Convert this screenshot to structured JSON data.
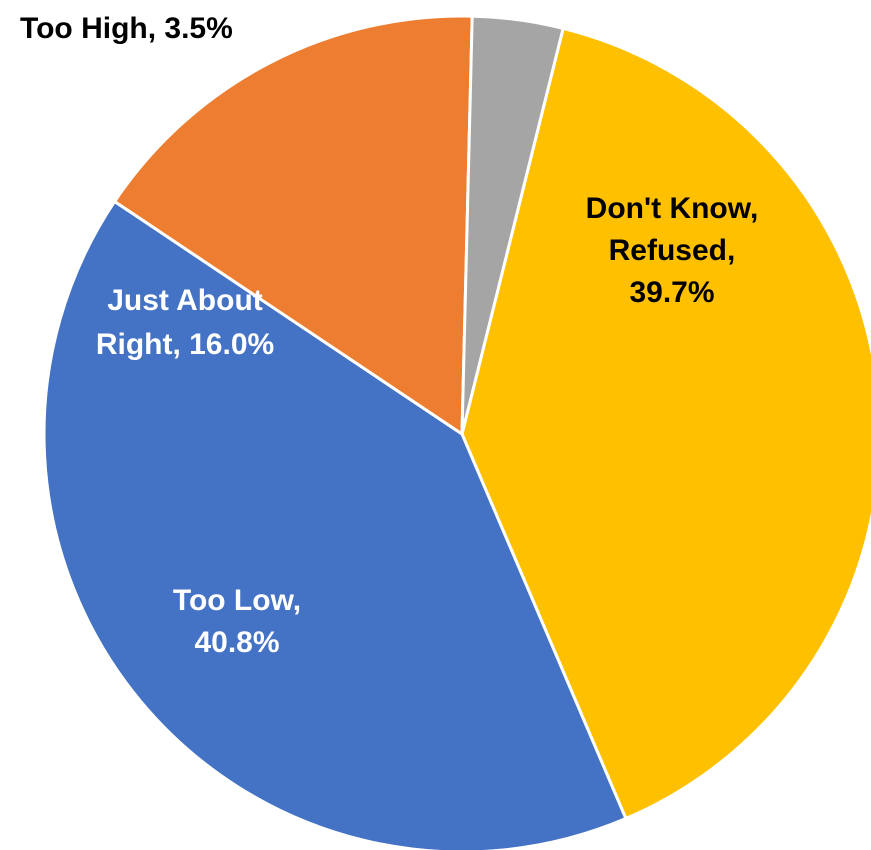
{
  "chart_data": {
    "type": "pie",
    "title": "",
    "slices": [
      {
        "name": "Don't Know, Refused",
        "value": 39.7,
        "label_lines": [
          "Don't Know,",
          "Refused,",
          "39.7%"
        ],
        "color": "#FFC000",
        "label_color": "#000000"
      },
      {
        "name": "Too Low",
        "value": 40.8,
        "label_lines": [
          "Too Low,",
          "40.8%"
        ],
        "color": "#4472C4",
        "label_color": "#FFFFFF"
      },
      {
        "name": "Just About Right",
        "value": 16.0,
        "label_lines": [
          "Just About",
          "Right, 16.0%"
        ],
        "color": "#ED7D31",
        "label_color": "#FFFFFF"
      },
      {
        "name": "Too High",
        "value": 3.5,
        "label_lines": [
          "Too High, 3.5%"
        ],
        "color": "#A5A5A5",
        "label_color": "#000000"
      }
    ],
    "legend": "none"
  }
}
